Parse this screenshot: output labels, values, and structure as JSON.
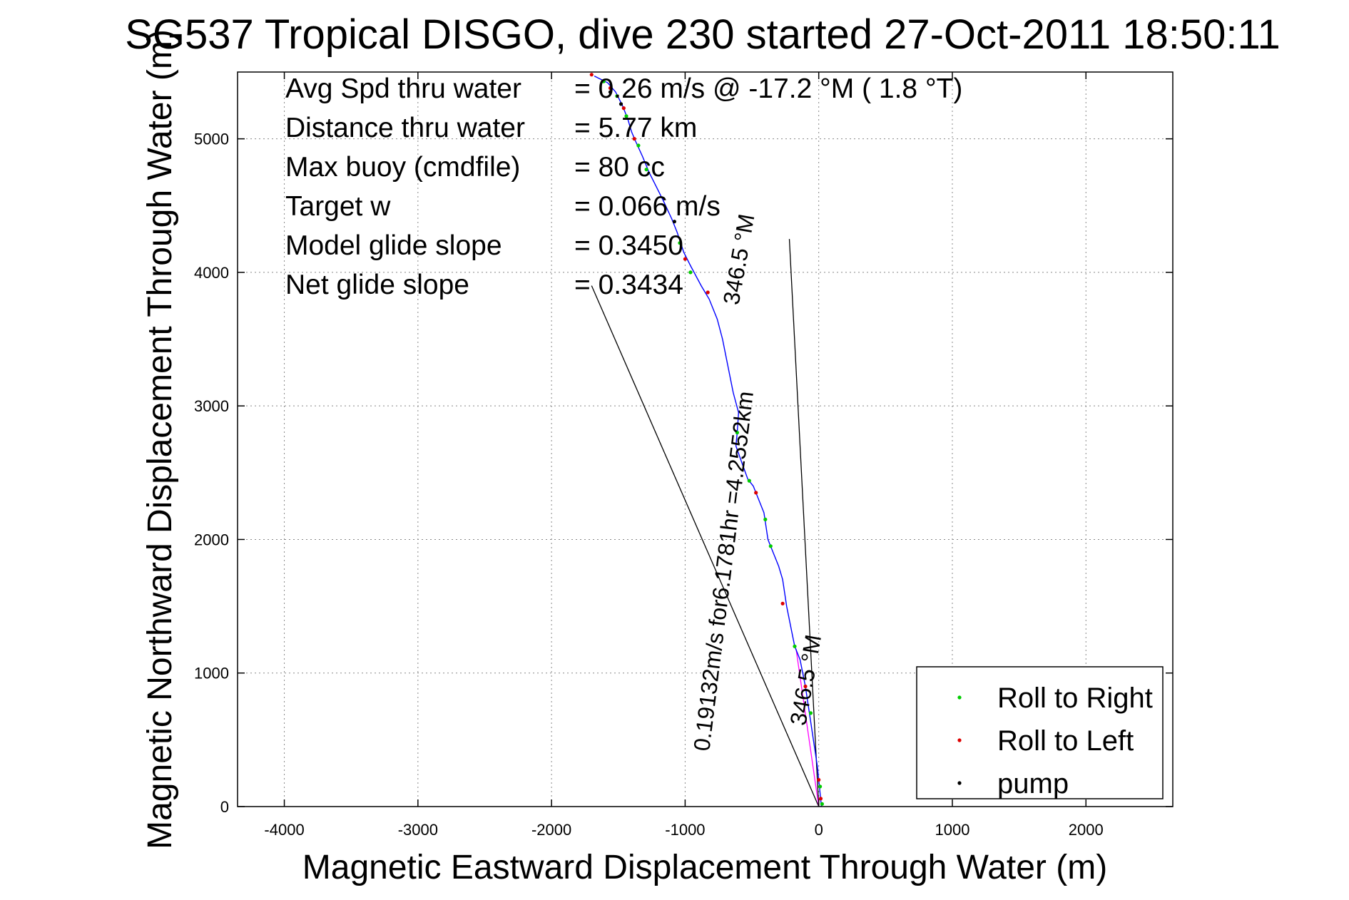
{
  "chart_data": {
    "type": "scatter",
    "title": "SG537 Tropical DISGO, dive 230 started 27-Oct-2011 18:50:11",
    "xlabel": "Magnetic Eastward Displacement Through Water (m)",
    "ylabel": "Magnetic Northward Displacement Through Water (m)",
    "xlim": [
      -4350,
      2650
    ],
    "ylim": [
      0,
      5500
    ],
    "xticks": [
      -4000,
      -3000,
      -2000,
      -1000,
      0,
      1000,
      2000
    ],
    "yticks": [
      0,
      1000,
      2000,
      3000,
      4000,
      5000
    ],
    "grid": true,
    "legend_position": "bottom-right",
    "stats": [
      {
        "label": "Avg Spd thru water",
        "value": "= 0.26 m/s @ -17.2 °M (  1.8 °T)"
      },
      {
        "label": "Distance thru water",
        "value": "=  5.77 km"
      },
      {
        "label": "Max buoy (cmdfile)",
        "value": "= 80 cc"
      },
      {
        "label": "Target w",
        "value": "= 0.066 m/s"
      },
      {
        "label": "Model glide slope",
        "value": "= 0.3450"
      },
      {
        "label": "Net glide slope",
        "value": "= 0.3434"
      }
    ],
    "annotations": [
      {
        "text": "0.19132m/s for6.1781hr =4.2552km",
        "x": -820,
        "y": 410,
        "angle": -83
      },
      {
        "text": "346.5 °M",
        "x": -600,
        "y": 3750,
        "angle": -80
      },
      {
        "text": "346.5 °M",
        "x": -100,
        "y": 600,
        "angle": -80
      }
    ],
    "reference_lines": [
      {
        "name": "current",
        "points": [
          [
            0,
            0
          ],
          [
            -220,
            4250
          ]
        ],
        "color": "#000000"
      },
      {
        "name": "drift",
        "points": [
          [
            0,
            0
          ],
          [
            -1700,
            3900
          ]
        ],
        "color": "#000000"
      },
      {
        "name": "vector",
        "points": [
          [
            0,
            0
          ],
          [
            -170,
            1180
          ]
        ],
        "color": "#ff00ff"
      }
    ],
    "series": [
      {
        "name": "track",
        "type": "line",
        "color": "#0000ff",
        "points": [
          [
            20,
            0
          ],
          [
            10,
            100
          ],
          [
            -10,
            300
          ],
          [
            -40,
            500
          ],
          [
            -70,
            700
          ],
          [
            -100,
            900
          ],
          [
            -140,
            1100
          ],
          [
            -180,
            1200
          ],
          [
            -200,
            1300
          ],
          [
            -240,
            1500
          ],
          [
            -270,
            1700
          ],
          [
            -300,
            1800
          ],
          [
            -340,
            1900
          ],
          [
            -380,
            2000
          ],
          [
            -410,
            2200
          ],
          [
            -450,
            2300
          ],
          [
            -490,
            2400
          ],
          [
            -530,
            2450
          ],
          [
            -570,
            2560
          ],
          [
            -620,
            2700
          ],
          [
            -610,
            2800
          ],
          [
            -600,
            2950
          ],
          [
            -640,
            3100
          ],
          [
            -680,
            3300
          ],
          [
            -720,
            3500
          ],
          [
            -760,
            3650
          ],
          [
            -820,
            3800
          ],
          [
            -880,
            3900
          ],
          [
            -960,
            4050
          ],
          [
            -1010,
            4150
          ],
          [
            -1060,
            4300
          ],
          [
            -1100,
            4400
          ],
          [
            -1160,
            4530
          ],
          [
            -1220,
            4650
          ],
          [
            -1270,
            4750
          ],
          [
            -1320,
            4870
          ],
          [
            -1370,
            4980
          ],
          [
            -1400,
            5050
          ],
          [
            -1430,
            5150
          ],
          [
            -1470,
            5250
          ],
          [
            -1520,
            5350
          ],
          [
            -1580,
            5420
          ],
          [
            -1680,
            5470
          ]
        ]
      },
      {
        "name": "Roll to Right",
        "type": "scatter",
        "color": "#00cc00",
        "points": [
          [
            25,
            20
          ],
          [
            10,
            150
          ],
          [
            -60,
            700
          ],
          [
            -180,
            1200
          ],
          [
            -360,
            1950
          ],
          [
            -400,
            2150
          ],
          [
            -520,
            2440
          ],
          [
            -610,
            2800
          ],
          [
            -960,
            4000
          ],
          [
            -1040,
            4220
          ],
          [
            -1290,
            4770
          ],
          [
            -1350,
            4950
          ],
          [
            -1440,
            5170
          ],
          [
            -1510,
            5320
          ],
          [
            -1610,
            5430
          ]
        ]
      },
      {
        "name": "Roll to Left",
        "type": "scatter",
        "color": "#dd0000",
        "points": [
          [
            15,
            60
          ],
          [
            0,
            200
          ],
          [
            -100,
            900
          ],
          [
            -270,
            1520
          ],
          [
            -470,
            2350
          ],
          [
            -830,
            3850
          ],
          [
            -1000,
            4100
          ],
          [
            -1380,
            5000
          ],
          [
            -1460,
            5230
          ],
          [
            -1560,
            5380
          ],
          [
            -1700,
            5480
          ]
        ]
      },
      {
        "name": "pump",
        "type": "scatter",
        "color": "#000000",
        "points": [
          [
            -1080,
            4380
          ],
          [
            -1560,
            5350
          ],
          [
            -1480,
            5260
          ]
        ]
      }
    ]
  }
}
